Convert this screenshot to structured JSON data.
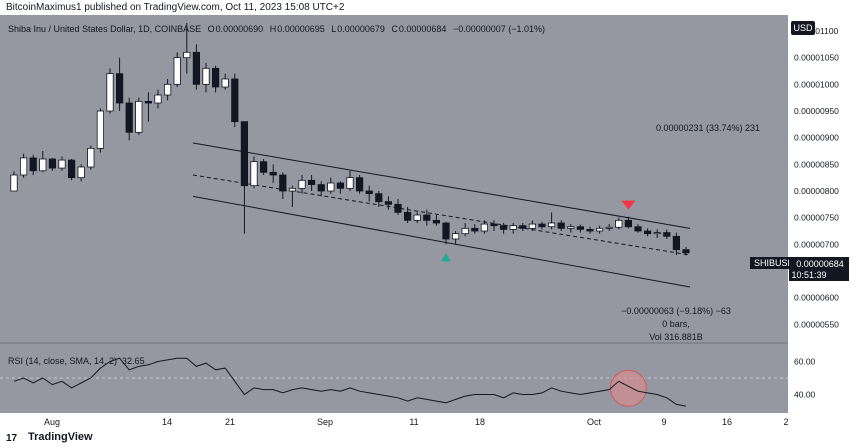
{
  "publish_line": "BitcoinMaximus1 published on TradingView.com, Oct 11, 2023 15:08 UTC+2",
  "footer": {
    "logo_text": "TradingView",
    "logo_glyph": "17"
  },
  "header": {
    "symbol": "Shiba Inu / United States Dollar, 1D, COINBASE",
    "o_label": "O",
    "o_value": "0.00000690",
    "h_label": "H",
    "h_value": "0.00000695",
    "l_label": "L",
    "l_value": "0.00000679",
    "c_label": "C",
    "c_value": "0.00000684",
    "change": "−0.00000007 (−1.01%)"
  },
  "currency_badge": "USD",
  "price_tag": {
    "symbol": "SHIBUSD",
    "price": "0.00000684",
    "countdown": "10:51:39"
  },
  "measure_top": "0.00000231 (33.74%) 231",
  "measure_bottom": {
    "line1": "−0.00000063 (−9.18%) −63",
    "line2": "0 bars,",
    "line3": "Vol 316.881B"
  },
  "rsi_label": {
    "name": "RSI (14, close, SMA, 14, 2)",
    "value": "32.65"
  },
  "colors": {
    "background": "#9598a1",
    "bull_body": "#ffffff",
    "bear_body": "#131722",
    "wick": "#131722",
    "up_arrow": "#22ab94",
    "down_arrow": "#f23645",
    "circle": "#e88a8a",
    "axis_bg": "#ffffff"
  },
  "icons": {
    "bull_marker": "triangle-up-icon",
    "bear_marker": "triangle-down-icon"
  },
  "chart_data": {
    "type": "candlestick",
    "ylim": [
      5.3e-06,
      1.13e-05
    ],
    "price_axis_ticks": [
      "0.00001100",
      "0.00001050",
      "0.00001000",
      "0.00000950",
      "0.00000900",
      "0.00000850",
      "0.00000800",
      "0.00000750",
      "0.00000700",
      "0.00000650",
      "0.00000600",
      "0.00000550"
    ],
    "date_axis_ticks": [
      "Aug",
      "14",
      "21",
      "Sep",
      "11",
      "18",
      "Oct",
      "9",
      "16",
      "2"
    ],
    "candles": [
      [
        8e-06,
        8.37e-06,
        8e-06,
        8.3e-06
      ],
      [
        8.3e-06,
        8.7e-06,
        8.25e-06,
        8.62e-06
      ],
      [
        8.62e-06,
        8.68e-06,
        8.3e-06,
        8.38e-06
      ],
      [
        8.38e-06,
        8.75e-06,
        8.35e-06,
        8.6e-06
      ],
      [
        8.6e-06,
        8.62e-06,
        8.38e-06,
        8.43e-06
      ],
      [
        8.43e-06,
        8.65e-06,
        8.38e-06,
        8.58e-06
      ],
      [
        8.58e-06,
        8.6e-06,
        8.2e-06,
        8.25e-06
      ],
      [
        8.25e-06,
        8.5e-06,
        8.18e-06,
        8.45e-06
      ],
      [
        8.45e-06,
        8.85e-06,
        8.4e-06,
        8.8e-06
      ],
      [
        8.8e-06,
        9.55e-06,
        8.72e-06,
        9.5e-06
      ],
      [
        9.5e-06,
        1.03e-05,
        9.45e-06,
        1.02e-05
      ],
      [
        1.02e-05,
        1.05e-05,
        9.5e-06,
        9.65e-06
      ],
      [
        9.65e-06,
        9.75e-06,
        8.95e-06,
        9.1e-06
      ],
      [
        9.1e-06,
        9.75e-06,
        9.05e-06,
        9.68e-06
      ],
      [
        9.68e-06,
        9.85e-06,
        9.3e-06,
        9.65e-06
      ],
      [
        9.65e-06,
        9.9e-06,
        9.55e-06,
        9.8e-06
      ],
      [
        9.8e-06,
        1.01e-05,
        9.7e-06,
        1e-05
      ],
      [
        1e-05,
        1.06e-05,
        9.95e-06,
        1.05e-05
      ],
      [
        1.05e-05,
        1.115e-05,
        1.02e-05,
        1.06e-05
      ],
      [
        1.06e-05,
        1.075e-05,
        9.9e-06,
        1e-05
      ],
      [
        1e-05,
        1.04e-05,
        9.85e-06,
        1.03e-05
      ],
      [
        1.03e-05,
        1.035e-05,
        9.85e-06,
        9.95e-06
      ],
      [
        9.95e-06,
        1.02e-05,
        9.9e-06,
        1.01e-05
      ],
      [
        1.01e-05,
        1.02e-05,
        9.2e-06,
        9.3e-06
      ],
      [
        9.3e-06,
        9.3e-06,
        7.2e-06,
        8.1e-06
      ],
      [
        8.1e-06,
        8.65e-06,
        8.05e-06,
        8.55e-06
      ],
      [
        8.55e-06,
        8.6e-06,
        8.3e-06,
        8.35e-06
      ],
      [
        8.35e-06,
        8.5e-06,
        8.15e-06,
        8.3e-06
      ],
      [
        8.3e-06,
        8.35e-06,
        7.85e-06,
        8e-06
      ],
      [
        8e-06,
        8.1e-06,
        7.7e-06,
        8.05e-06
      ],
      [
        8.05e-06,
        8.3e-06,
        7.95e-06,
        8.2e-06
      ],
      [
        8.2e-06,
        8.3e-06,
        8e-06,
        8.12e-06
      ],
      [
        8.12e-06,
        8.18e-06,
        7.9e-06,
        8e-06
      ],
      [
        8e-06,
        8.25e-06,
        7.95e-06,
        8.15e-06
      ],
      [
        8.15e-06,
        8.18e-06,
        7.95e-06,
        8.05e-06
      ],
      [
        8.05e-06,
        8.38e-06,
        8e-06,
        8.25e-06
      ],
      [
        8.25e-06,
        8.3e-06,
        7.95e-06,
        8e-06
      ],
      [
        8e-06,
        8.1e-06,
        7.8e-06,
        7.95e-06
      ],
      [
        7.95e-06,
        8e-06,
        7.7e-06,
        7.8e-06
      ],
      [
        7.8e-06,
        7.9e-06,
        7.65e-06,
        7.75e-06
      ],
      [
        7.75e-06,
        7.85e-06,
        7.55e-06,
        7.6e-06
      ],
      [
        7.6e-06,
        7.7e-06,
        7.4e-06,
        7.45e-06
      ],
      [
        7.45e-06,
        7.6e-06,
        7.4e-06,
        7.55e-06
      ],
      [
        7.55e-06,
        7.65e-06,
        7.35e-06,
        7.45e-06
      ],
      [
        7.45e-06,
        7.55e-06,
        7.35e-06,
        7.4e-06
      ],
      [
        7.4e-06,
        7.42e-06,
        7e-06,
        7.1e-06
      ],
      [
        7.1e-06,
        7.25e-06,
        7e-06,
        7.2e-06
      ],
      [
        7.2e-06,
        7.4e-06,
        7.15e-06,
        7.3e-06
      ],
      [
        7.3e-06,
        7.38e-06,
        7.2e-06,
        7.25e-06
      ],
      [
        7.25e-06,
        7.45e-06,
        7.2e-06,
        7.38e-06
      ],
      [
        7.38e-06,
        7.45e-06,
        7.25e-06,
        7.35e-06
      ],
      [
        7.35e-06,
        7.4e-06,
        7.2e-06,
        7.28e-06
      ],
      [
        7.28e-06,
        7.4e-06,
        7.2e-06,
        7.35e-06
      ],
      [
        7.35e-06,
        7.4e-06,
        7.25e-06,
        7.3e-06
      ],
      [
        7.3e-06,
        7.45e-06,
        7.25e-06,
        7.38e-06
      ],
      [
        7.38e-06,
        7.42e-06,
        7.28e-06,
        7.33e-06
      ],
      [
        7.33e-06,
        7.6e-06,
        7.28e-06,
        7.4e-06
      ],
      [
        7.4e-06,
        7.45e-06,
        7.25e-06,
        7.3e-06
      ],
      [
        7.3e-06,
        7.38e-06,
        7.22e-06,
        7.33e-06
      ],
      [
        7.33e-06,
        7.37e-06,
        7.22e-06,
        7.28e-06
      ],
      [
        7.28e-06,
        7.33e-06,
        7.2e-06,
        7.25e-06
      ],
      [
        7.25e-06,
        7.35e-06,
        7.2e-06,
        7.3e-06
      ],
      [
        7.3e-06,
        7.38e-06,
        7.25e-06,
        7.32e-06
      ],
      [
        7.32e-06,
        7.5e-06,
        7.28e-06,
        7.45e-06
      ],
      [
        7.45e-06,
        7.52e-06,
        7.3e-06,
        7.33e-06
      ],
      [
        7.33e-06,
        7.38e-06,
        7.22e-06,
        7.25e-06
      ],
      [
        7.25e-06,
        7.3e-06,
        7.15e-06,
        7.2e-06
      ],
      [
        7.2e-06,
        7.28e-06,
        7.12e-06,
        7.22e-06
      ],
      [
        7.22e-06,
        7.28e-06,
        7.1e-06,
        7.15e-06
      ],
      [
        7.15e-06,
        7.22e-06,
        6.8e-06,
        6.9e-06
      ],
      [
        6.9e-06,
        6.95e-06,
        6.79e-06,
        6.84e-06
      ]
    ],
    "channel_upper": [
      [
        8.9e-06,
        7.3e-06
      ]
    ],
    "channel_lower": [
      [
        7.9e-06,
        6.2e-06
      ]
    ],
    "channel_mid": [
      [
        8.3e-06,
        6.8e-06
      ]
    ],
    "rsi": {
      "ylim": [
        30,
        70
      ],
      "ticks": [
        "60.00",
        "40.00"
      ],
      "values": [
        48,
        50,
        47,
        50,
        46,
        48,
        44,
        47,
        50,
        56,
        60,
        62,
        55,
        57,
        58,
        60,
        61,
        62,
        62,
        57,
        59,
        55,
        56,
        48,
        40,
        44,
        43,
        43,
        41,
        43,
        44,
        43,
        42,
        43,
        42,
        44,
        42,
        41,
        40,
        39,
        38,
        36,
        38,
        37,
        36,
        35,
        37,
        39,
        40,
        40,
        40,
        38,
        41,
        40,
        40,
        41,
        44,
        42,
        41,
        40,
        41,
        42,
        43,
        48,
        45,
        42,
        41,
        40,
        38,
        34,
        33
      ]
    },
    "markers": [
      {
        "type": "bull",
        "index": 45
      },
      {
        "type": "bear",
        "index": 64
      }
    ]
  }
}
